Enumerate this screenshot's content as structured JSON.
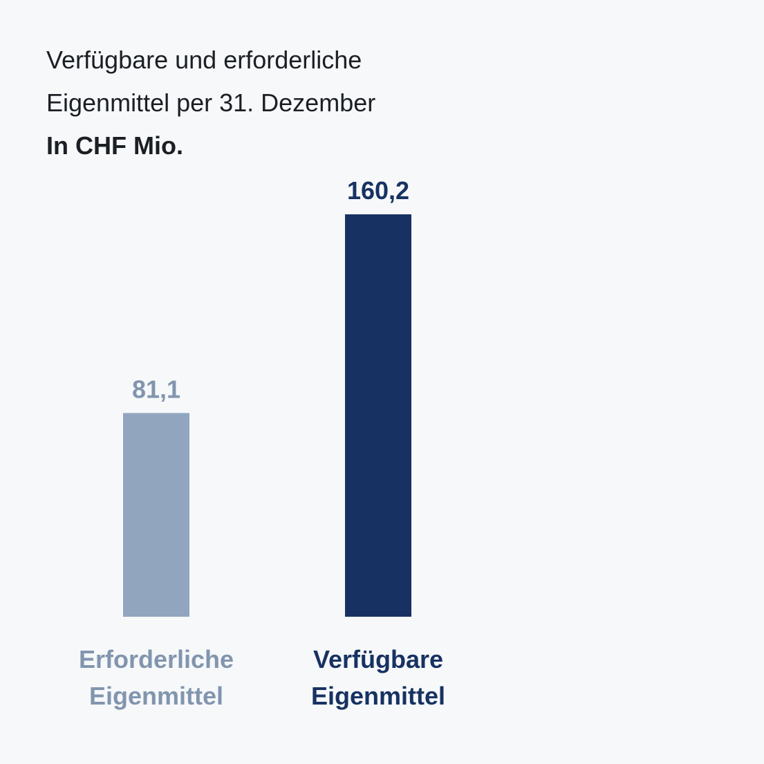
{
  "chart_data": {
    "type": "bar",
    "title_lines": [
      "Verfügbare und erforderliche",
      "Eigenmittel per 31. Dezember"
    ],
    "subtitle": "In CHF Mio.",
    "categories": [
      {
        "lines": [
          "Erforderliche",
          "Eigenmittel"
        ]
      },
      {
        "lines": [
          "Verfügbare",
          "Eigenmittel"
        ]
      }
    ],
    "values": [
      81.1,
      160.2
    ],
    "value_labels": [
      "81,1",
      "160,2"
    ],
    "colors": [
      "#91a6be",
      "#173262"
    ],
    "label_colors": [
      "#8295ae",
      "#173262"
    ],
    "ylim": [
      0,
      160.2
    ],
    "grid": false,
    "legend": "none"
  }
}
